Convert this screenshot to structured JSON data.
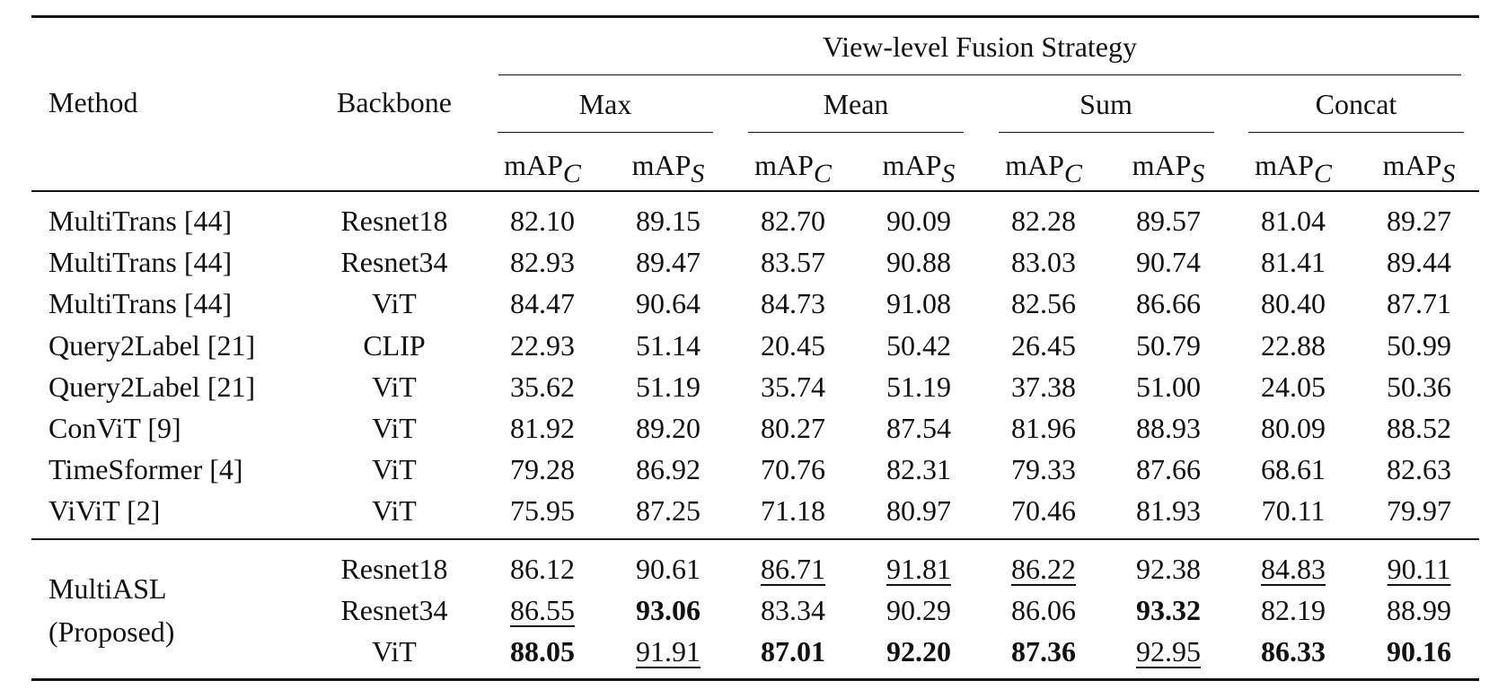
{
  "table": {
    "header": {
      "method": "Method",
      "backbone": "Backbone",
      "group_title": "View-level Fusion Strategy",
      "strategies": [
        "Max",
        "Mean",
        "Sum",
        "Concat"
      ],
      "metrics": [
        {
          "text": "mAP",
          "sub": "C"
        },
        {
          "text": "mAP",
          "sub": "S"
        }
      ]
    },
    "rows": [
      {
        "method": "MultiTrans [44]",
        "backbone": "Resnet18",
        "values": [
          "82.10",
          "89.15",
          "82.70",
          "90.09",
          "82.28",
          "89.57",
          "81.04",
          "89.27"
        ]
      },
      {
        "method": "MultiTrans [44]",
        "backbone": "Resnet34",
        "values": [
          "82.93",
          "89.47",
          "83.57",
          "90.88",
          "83.03",
          "90.74",
          "81.41",
          "89.44"
        ]
      },
      {
        "method": "MultiTrans [44]",
        "backbone": "ViT",
        "values": [
          "84.47",
          "90.64",
          "84.73",
          "91.08",
          "82.56",
          "86.66",
          "80.40",
          "87.71"
        ]
      },
      {
        "method": "Query2Label [21]",
        "backbone": "CLIP",
        "values": [
          "22.93",
          "51.14",
          "20.45",
          "50.42",
          "26.45",
          "50.79",
          "22.88",
          "50.99"
        ]
      },
      {
        "method": "Query2Label [21]",
        "backbone": "ViT",
        "values": [
          "35.62",
          "51.19",
          "35.74",
          "51.19",
          "37.38",
          "51.00",
          "24.05",
          "50.36"
        ]
      },
      {
        "method": "ConViT [9]",
        "backbone": "ViT",
        "values": [
          "81.92",
          "89.20",
          "80.27",
          "87.54",
          "81.96",
          "88.93",
          "80.09",
          "88.52"
        ]
      },
      {
        "method": "TimeSformer [4]",
        "backbone": "ViT",
        "values": [
          "79.28",
          "86.92",
          "70.76",
          "82.31",
          "79.33",
          "87.66",
          "68.61",
          "82.63"
        ]
      },
      {
        "method": "ViViT [2]",
        "backbone": "ViT",
        "values": [
          "75.95",
          "87.25",
          "71.18",
          "80.97",
          "70.46",
          "81.93",
          "70.11",
          "79.97"
        ]
      }
    ],
    "proposed": {
      "method": [
        "MultiASL",
        "(Proposed)"
      ],
      "rows": [
        {
          "backbone": "Resnet18",
          "values": [
            "86.12",
            "90.61",
            {
              "text": "86.71",
              "style": "underline"
            },
            {
              "text": "91.81",
              "style": "underline"
            },
            {
              "text": "86.22",
              "style": "underline"
            },
            "92.38",
            {
              "text": "84.83",
              "style": "underline"
            },
            {
              "text": "90.11",
              "style": "underline"
            }
          ]
        },
        {
          "backbone": "Resnet34",
          "values": [
            {
              "text": "86.55",
              "style": "underline"
            },
            {
              "text": "93.06",
              "style": "bold"
            },
            "83.34",
            "90.29",
            "86.06",
            {
              "text": "93.32",
              "style": "bold"
            },
            "82.19",
            "88.99"
          ]
        },
        {
          "backbone": "ViT",
          "values": [
            {
              "text": "88.05",
              "style": "bold"
            },
            {
              "text": "91.91",
              "style": "underline"
            },
            {
              "text": "87.01",
              "style": "bold"
            },
            {
              "text": "92.20",
              "style": "bold"
            },
            {
              "text": "87.36",
              "style": "bold"
            },
            {
              "text": "92.95",
              "style": "underline"
            },
            {
              "text": "86.33",
              "style": "bold"
            },
            {
              "text": "90.16",
              "style": "bold"
            }
          ]
        }
      ]
    }
  }
}
